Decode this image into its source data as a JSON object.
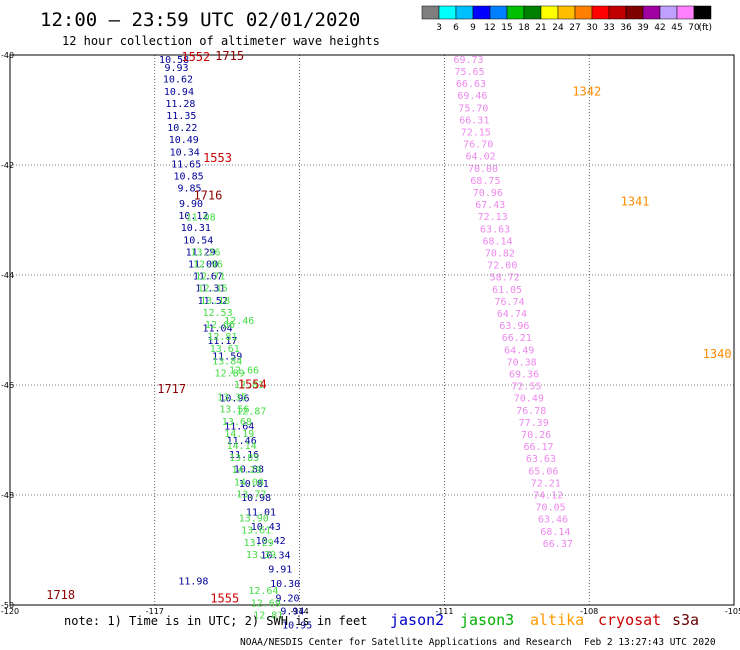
{
  "header": {
    "title": "12:00 – 23:59 UTC 02/01/2020",
    "subtitle": "12 hour collection of altimeter wave heights"
  },
  "colorbar": {
    "unit": "(ft)",
    "colors": [
      "#7f7f7f",
      "#00ffff",
      "#00bfff",
      "#0000ff",
      "#0080ff",
      "#00c000",
      "#008000",
      "#ffff00",
      "#ffbf00",
      "#ff8000",
      "#ff0000",
      "#c00000",
      "#800000",
      "#a000a0",
      "#c0a0ff",
      "#ff80ff",
      "#000000"
    ],
    "labels": [
      "3",
      "6",
      "9",
      "12",
      "15",
      "18",
      "21",
      "24",
      "27",
      "30",
      "33",
      "36",
      "39",
      "42",
      "45",
      "70"
    ]
  },
  "footer": {
    "note": "note: 1) Time is in UTC; 2) SWH is in feet",
    "credit": "NOAA/NESDIS Center for Satellite Applications and Research",
    "timestamp": "Feb  2 13:27:43 UTC 2020"
  },
  "chart_data": {
    "type": "scatter",
    "title": "12:00 – 23:59 UTC 02/01/2020",
    "subtitle": "12 hour collection of altimeter wave heights",
    "xlim": [
      -120,
      -105
    ],
    "ylim": [
      -50,
      -40
    ],
    "xticks": [
      "-120",
      "-117",
      "-114",
      "-111",
      "-108",
      "-105"
    ],
    "yticks": [
      "-40",
      "-42",
      "-44",
      "-46",
      "-48",
      "-50"
    ],
    "grid": true,
    "legend": [
      {
        "name": "jason2",
        "color": "#0000cc"
      },
      {
        "name": "jason3",
        "color": "#00b000"
      },
      {
        "name": "altika",
        "color": "#ff9900"
      },
      {
        "name": "cryosat",
        "color": "#cc0000"
      },
      {
        "name": "s3a",
        "color": "#660000"
      }
    ],
    "series": [
      {
        "name": "jason2",
        "color": "#000099",
        "points": [
          {
            "x": -116.6,
            "y": -40.07,
            "v": "10.58"
          },
          {
            "x": -116.55,
            "y": -40.22,
            "v": "9.93"
          },
          {
            "x": -116.52,
            "y": -40.43,
            "v": "10.62"
          },
          {
            "x": -116.5,
            "y": -40.65,
            "v": "10.94"
          },
          {
            "x": -116.47,
            "y": -40.87,
            "v": "11.28"
          },
          {
            "x": -116.45,
            "y": -41.09,
            "v": "11.35"
          },
          {
            "x": -116.43,
            "y": -41.31,
            "v": "10.22"
          },
          {
            "x": -116.4,
            "y": -41.53,
            "v": "10.49"
          },
          {
            "x": -116.38,
            "y": -41.75,
            "v": "10.34"
          },
          {
            "x": -116.35,
            "y": -41.97,
            "v": "11.65"
          },
          {
            "x": -116.3,
            "y": -42.19,
            "v": "10.85"
          },
          {
            "x": -116.28,
            "y": -42.41,
            "v": "9.85"
          },
          {
            "x": -116.25,
            "y": -42.69,
            "v": "9.90"
          },
          {
            "x": -116.2,
            "y": -42.91,
            "v": "10.12"
          },
          {
            "x": -116.15,
            "y": -43.13,
            "v": "10.31"
          },
          {
            "x": -116.1,
            "y": -43.35,
            "v": "10.54"
          },
          {
            "x": -116.05,
            "y": -43.57,
            "v": "11.29"
          },
          {
            "x": -116.0,
            "y": -43.79,
            "v": "11.00"
          },
          {
            "x": -115.9,
            "y": -44.01,
            "v": "11.67"
          },
          {
            "x": -115.85,
            "y": -44.23,
            "v": "11.31"
          },
          {
            "x": -115.8,
            "y": -44.45,
            "v": "11.52"
          },
          {
            "x": -115.7,
            "y": -44.95,
            "v": "11.04"
          },
          {
            "x": -115.6,
            "y": -45.18,
            "v": "11.17"
          },
          {
            "x": -115.5,
            "y": -45.46,
            "v": "11.59"
          },
          {
            "x": -115.35,
            "y": -46.23,
            "v": "10.96"
          },
          {
            "x": -115.25,
            "y": -46.74,
            "v": "11.64"
          },
          {
            "x": -115.2,
            "y": -47.0,
            "v": "11.46"
          },
          {
            "x": -115.15,
            "y": -47.25,
            "v": "11.16"
          },
          {
            "x": -115.05,
            "y": -47.52,
            "v": "10.88"
          },
          {
            "x": -114.95,
            "y": -47.78,
            "v": "10.81"
          },
          {
            "x": -114.9,
            "y": -48.04,
            "v": "10.98"
          },
          {
            "x": -114.8,
            "y": -48.3,
            "v": "11.01"
          },
          {
            "x": -114.7,
            "y": -48.56,
            "v": "10.43"
          },
          {
            "x": -114.6,
            "y": -48.82,
            "v": "10.42"
          },
          {
            "x": -114.5,
            "y": -49.08,
            "v": "10.34"
          },
          {
            "x": -114.4,
            "y": -49.34,
            "v": "9.91"
          },
          {
            "x": -114.3,
            "y": -49.6,
            "v": "10.30"
          },
          {
            "x": -114.25,
            "y": -49.86,
            "v": "9.20"
          },
          {
            "x": -114.15,
            "y": -50.1,
            "v": "9.94"
          },
          {
            "x": -114.05,
            "y": -50.35,
            "v": "10.95"
          },
          {
            "x": -116.2,
            "y": -49.55,
            "v": "11.98"
          }
        ]
      },
      {
        "name": "jason3",
        "color": "#44dd44",
        "points": [
          {
            "x": -116.05,
            "y": -42.94,
            "v": "11.08"
          },
          {
            "x": -115.95,
            "y": -43.57,
            "v": "13.26"
          },
          {
            "x": -115.9,
            "y": -43.79,
            "v": "12.96"
          },
          {
            "x": -115.85,
            "y": -44.01,
            "v": "12.71"
          },
          {
            "x": -115.8,
            "y": -44.23,
            "v": "12.15"
          },
          {
            "x": -115.75,
            "y": -44.45,
            "v": "13.18"
          },
          {
            "x": -115.7,
            "y": -44.67,
            "v": "12.53"
          },
          {
            "x": -115.65,
            "y": -44.89,
            "v": "12.66"
          },
          {
            "x": -115.6,
            "y": -45.11,
            "v": "12.81"
          },
          {
            "x": -115.55,
            "y": -45.33,
            "v": "13.61"
          },
          {
            "x": -115.5,
            "y": -45.55,
            "v": "13.84"
          },
          {
            "x": -115.45,
            "y": -45.77,
            "v": "12.89"
          },
          {
            "x": -115.4,
            "y": -46.21,
            "v": "13.35"
          },
          {
            "x": -115.35,
            "y": -46.43,
            "v": "13.56"
          },
          {
            "x": -115.3,
            "y": -46.65,
            "v": "13.68"
          },
          {
            "x": -115.25,
            "y": -46.87,
            "v": "14.19"
          },
          {
            "x": -115.2,
            "y": -47.09,
            "v": "14.14"
          },
          {
            "x": -115.15,
            "y": -47.31,
            "v": "13.85"
          },
          {
            "x": -115.1,
            "y": -47.53,
            "v": "14.29"
          },
          {
            "x": -115.05,
            "y": -47.75,
            "v": "14.08"
          },
          {
            "x": -115.0,
            "y": -47.97,
            "v": "13.77"
          },
          {
            "x": -114.95,
            "y": -48.41,
            "v": "13.90"
          },
          {
            "x": -114.9,
            "y": -48.63,
            "v": "13.61"
          },
          {
            "x": -114.85,
            "y": -48.85,
            "v": "13.29"
          },
          {
            "x": -114.8,
            "y": -49.07,
            "v": "13.39"
          },
          {
            "x": -114.75,
            "y": -49.73,
            "v": "12.64"
          },
          {
            "x": -114.7,
            "y": -49.95,
            "v": "12.69"
          },
          {
            "x": -114.65,
            "y": -50.17,
            "v": "12.81"
          },
          {
            "x": -115.05,
            "y": -45.98,
            "v": "12.81"
          },
          {
            "x": -115.25,
            "y": -44.82,
            "v": "12.46"
          },
          {
            "x": -115.15,
            "y": -45.72,
            "v": "12.66"
          },
          {
            "x": -115.0,
            "y": -46.46,
            "v": "12.87"
          }
        ]
      },
      {
        "name": "s3a",
        "color": "#ee88ee",
        "points": [
          {
            "x": -110.5,
            "y": -40.07,
            "v": "69.73"
          },
          {
            "x": -110.48,
            "y": -40.29,
            "v": "75.65"
          },
          {
            "x": -110.45,
            "y": -40.51,
            "v": "66.63"
          },
          {
            "x": -110.42,
            "y": -40.73,
            "v": "69.46"
          },
          {
            "x": -110.4,
            "y": -40.95,
            "v": "75.70"
          },
          {
            "x": -110.38,
            "y": -41.17,
            "v": "66.31"
          },
          {
            "x": -110.35,
            "y": -41.39,
            "v": "72.15"
          },
          {
            "x": -110.3,
            "y": -41.61,
            "v": "76.70"
          },
          {
            "x": -110.25,
            "y": -41.83,
            "v": "64.02"
          },
          {
            "x": -110.2,
            "y": -42.05,
            "v": "70.00"
          },
          {
            "x": -110.15,
            "y": -42.27,
            "v": "68.75"
          },
          {
            "x": -110.1,
            "y": -42.49,
            "v": "70.96"
          },
          {
            "x": -110.05,
            "y": -42.71,
            "v": "67.43"
          },
          {
            "x": -110.0,
            "y": -42.93,
            "v": "72.13"
          },
          {
            "x": -109.95,
            "y": -43.15,
            "v": "63.63"
          },
          {
            "x": -109.9,
            "y": -43.37,
            "v": "68.14"
          },
          {
            "x": -109.85,
            "y": -43.59,
            "v": "70.82"
          },
          {
            "x": -109.8,
            "y": -43.81,
            "v": "72.00"
          },
          {
            "x": -109.75,
            "y": -44.03,
            "v": "58.72"
          },
          {
            "x": -109.7,
            "y": -44.25,
            "v": "61.05"
          },
          {
            "x": -109.65,
            "y": -44.47,
            "v": "76.74"
          },
          {
            "x": -109.6,
            "y": -44.69,
            "v": "64.74"
          },
          {
            "x": -109.55,
            "y": -44.91,
            "v": "63.96"
          },
          {
            "x": -109.5,
            "y": -45.13,
            "v": "66.21"
          },
          {
            "x": -109.45,
            "y": -45.35,
            "v": "64.49"
          },
          {
            "x": -109.4,
            "y": -45.57,
            "v": "70.38"
          },
          {
            "x": -109.35,
            "y": -45.79,
            "v": "69.36"
          },
          {
            "x": -109.3,
            "y": -46.01,
            "v": "72.55"
          },
          {
            "x": -109.25,
            "y": -46.23,
            "v": "70.49"
          },
          {
            "x": -109.2,
            "y": -46.45,
            "v": "76.78"
          },
          {
            "x": -109.15,
            "y": -46.67,
            "v": "77.39"
          },
          {
            "x": -109.1,
            "y": -46.89,
            "v": "70.26"
          },
          {
            "x": -109.05,
            "y": -47.11,
            "v": "66.17"
          },
          {
            "x": -109.0,
            "y": -47.33,
            "v": "63.63"
          },
          {
            "x": -108.95,
            "y": -47.55,
            "v": "65.06"
          },
          {
            "x": -108.9,
            "y": -47.77,
            "v": "72.21"
          },
          {
            "x": -108.85,
            "y": -47.99,
            "v": "74.12"
          },
          {
            "x": -108.8,
            "y": -48.21,
            "v": "70.05"
          },
          {
            "x": -108.75,
            "y": -48.43,
            "v": "63.46"
          },
          {
            "x": -108.7,
            "y": -48.65,
            "v": "68.14"
          },
          {
            "x": -108.65,
            "y": -48.87,
            "v": "66.37"
          }
        ]
      }
    ],
    "pass_labels": [
      {
        "x": -116.15,
        "y": -40.04,
        "v": "1552",
        "color": "#cc0000"
      },
      {
        "x": -115.45,
        "y": -40.02,
        "v": "1715",
        "color": "#8b0000"
      },
      {
        "x": -115.7,
        "y": -41.87,
        "v": "1553",
        "color": "#cc0000"
      },
      {
        "x": -115.9,
        "y": -42.55,
        "v": "1716",
        "color": "#8b0000"
      },
      {
        "x": -114.98,
        "y": -45.99,
        "v": "1554",
        "color": "#cc0000"
      },
      {
        "x": -116.65,
        "y": -46.07,
        "v": "1717",
        "color": "#8b0000"
      },
      {
        "x": -115.55,
        "y": -49.88,
        "v": "1555",
        "color": "#cc0000"
      },
      {
        "x": -118.95,
        "y": -49.82,
        "v": "1718",
        "color": "#8b0000"
      },
      {
        "x": -108.05,
        "y": -40.66,
        "v": "1342",
        "color": "#ff8c00"
      },
      {
        "x": -107.05,
        "y": -42.66,
        "v": "1341",
        "color": "#ff8c00"
      },
      {
        "x": -105.35,
        "y": -45.44,
        "v": "1340",
        "color": "#ff8c00"
      }
    ]
  }
}
